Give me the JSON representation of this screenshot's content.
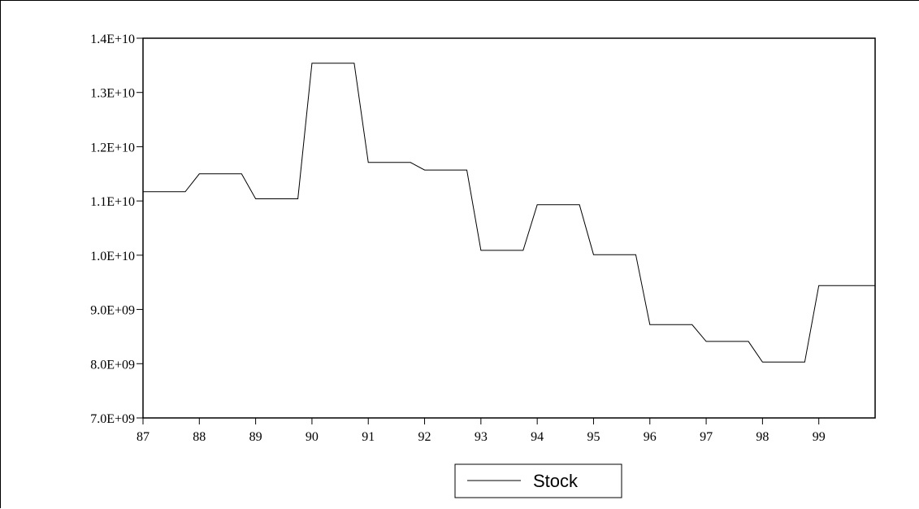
{
  "chart_data": {
    "type": "line",
    "title": "",
    "xlabel": "",
    "ylabel": "",
    "x_tick_labels": [
      "87",
      "88",
      "89",
      "90",
      "91",
      "92",
      "93",
      "94",
      "95",
      "96",
      "97",
      "98",
      "99"
    ],
    "y_tick_labels": [
      "7.0E+09",
      "8.0E+09",
      "9.0E+09",
      "1.0E+10",
      "1.1E+10",
      "1.2E+10",
      "1.3E+10",
      "1.4E+10"
    ],
    "y_ticks": [
      7000000000.0,
      8000000000.0,
      9000000000.0,
      10000000000.0,
      11000000000.0,
      12000000000.0,
      13000000000.0,
      14000000000.0
    ],
    "ylim": [
      7000000000.0,
      14000000000.0
    ],
    "xlim": [
      1987.0,
      2000.0
    ],
    "grid": false,
    "legend_position": "bottom-center",
    "series": [
      {
        "name": "Stock",
        "color": "#000000",
        "x": [
          1987.0,
          1987.25,
          1987.5,
          1987.75,
          1988.0,
          1988.25,
          1988.5,
          1988.75,
          1989.0,
          1989.25,
          1989.5,
          1989.75,
          1990.0,
          1990.25,
          1990.5,
          1990.75,
          1991.0,
          1991.25,
          1991.5,
          1991.75,
          1992.0,
          1992.25,
          1992.5,
          1992.75,
          1993.0,
          1993.25,
          1993.5,
          1993.75,
          1994.0,
          1994.25,
          1994.5,
          1994.75,
          1995.0,
          1995.25,
          1995.5,
          1995.75,
          1996.0,
          1996.25,
          1996.5,
          1996.75,
          1997.0,
          1997.25,
          1997.5,
          1997.75,
          1998.0,
          1998.25,
          1998.5,
          1998.75,
          1999.0,
          1999.25,
          1999.5,
          1999.75
        ],
        "y": [
          11170000000.0,
          11170000000.0,
          11170000000.0,
          11170000000.0,
          11500000000.0,
          11500000000.0,
          11500000000.0,
          11500000000.0,
          11040000000.0,
          11040000000.0,
          11040000000.0,
          11040000000.0,
          13540000000.0,
          13540000000.0,
          13540000000.0,
          13540000000.0,
          11710000000.0,
          11710000000.0,
          11710000000.0,
          11710000000.0,
          11570000000.0,
          11570000000.0,
          11570000000.0,
          11570000000.0,
          10090000000.0,
          10090000000.0,
          10090000000.0,
          10090000000.0,
          10930000000.0,
          10930000000.0,
          10930000000.0,
          10930000000.0,
          10010000000.0,
          10010000000.0,
          10010000000.0,
          10010000000.0,
          8720000000.0,
          8720000000.0,
          8720000000.0,
          8720000000.0,
          8410000000.0,
          8410000000.0,
          8410000000.0,
          8410000000.0,
          8030000000.0,
          8030000000.0,
          8030000000.0,
          8030000000.0,
          9440000000.0,
          9440000000.0,
          9440000000.0,
          9440000000.0
        ]
      }
    ]
  }
}
